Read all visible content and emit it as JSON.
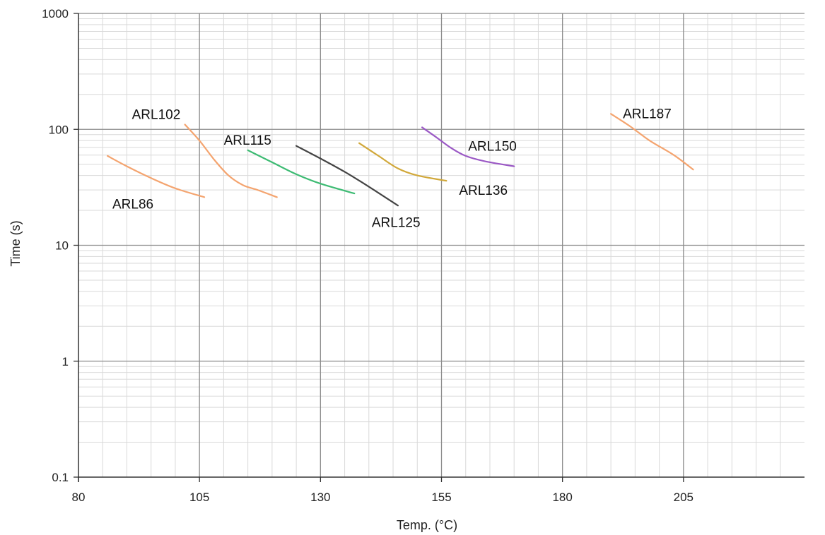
{
  "chart_data": {
    "type": "line",
    "title": "",
    "xlabel": "Temp. (°C)",
    "ylabel": "Time (s)",
    "xlim": [
      80,
      230
    ],
    "ylim": [
      0.1,
      1000
    ],
    "yscale": "log",
    "grid": true,
    "x_ticks": [
      80,
      105,
      130,
      155,
      180,
      205
    ],
    "x_tick_labels": [
      "80",
      "105",
      "130",
      "155",
      "180",
      "205"
    ],
    "y_ticks": [
      0.1,
      1,
      10,
      100,
      1000
    ],
    "y_tick_labels": [
      "0.1",
      "1",
      "10",
      "100",
      "1000"
    ],
    "series": [
      {
        "name": "ARL86",
        "color": "#f4a46f",
        "x": [
          86,
          90,
          95,
          100,
          106
        ],
        "y": [
          59,
          48,
          38,
          31,
          26
        ]
      },
      {
        "name": "ARL102",
        "color": "#f4a46f",
        "x": [
          102,
          105,
          108,
          111,
          114,
          117,
          121
        ],
        "y": [
          110,
          80,
          55,
          40,
          33,
          30,
          26
        ]
      },
      {
        "name": "ARL115",
        "color": "#3dbb73",
        "x": [
          115,
          120,
          125,
          130,
          137
        ],
        "y": [
          66,
          52,
          41,
          34,
          28
        ]
      },
      {
        "name": "ARL125",
        "color": "#444444",
        "x": [
          125,
          130,
          135,
          140,
          146
        ],
        "y": [
          72,
          56,
          43,
          32,
          22
        ]
      },
      {
        "name": "ARL136",
        "color": "#d1a83a",
        "x": [
          138,
          142,
          146,
          150,
          156
        ],
        "y": [
          76,
          59,
          46,
          40,
          36
        ]
      },
      {
        "name": "ARL150",
        "color": "#9b59c5",
        "x": [
          151,
          154,
          157,
          160,
          164,
          170
        ],
        "y": [
          104,
          85,
          69,
          59,
          53,
          48
        ]
      },
      {
        "name": "ARL187",
        "color": "#f4a46f",
        "x": [
          190,
          194,
          198,
          203,
          207
        ],
        "y": [
          136,
          106,
          80,
          60,
          45
        ]
      }
    ]
  }
}
